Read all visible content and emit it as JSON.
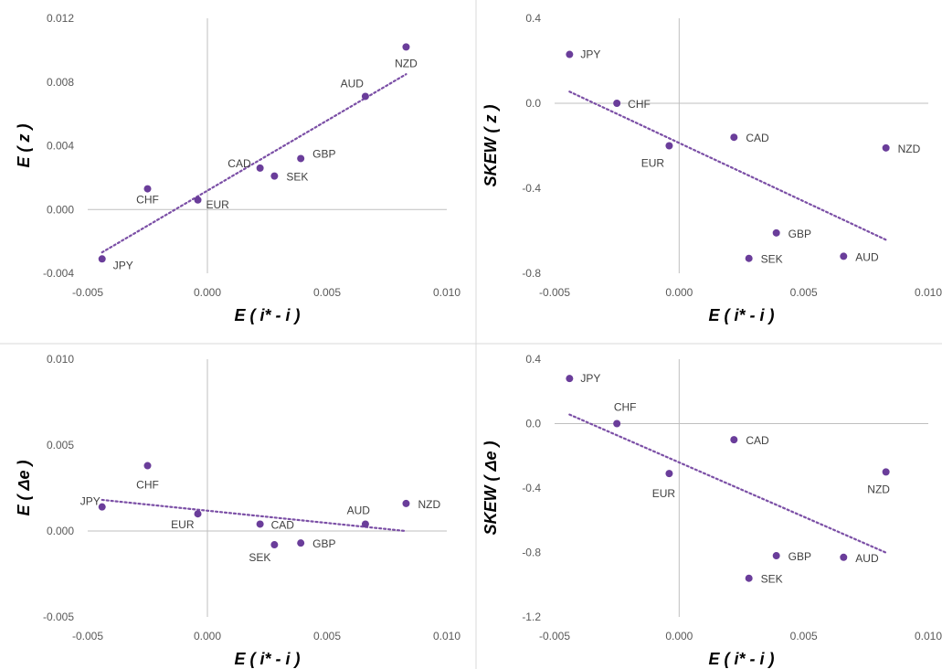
{
  "colors": {
    "marker": "#6a3d9a",
    "trend": "#7b4fa6",
    "zero_axis": "#bfbfbf",
    "text": "#595959"
  },
  "chart_data": [
    {
      "type": "scatter",
      "xlabel": "E ( i* - i )",
      "ylabel": "E ( z )",
      "xlim": [
        -0.005,
        0.01
      ],
      "ylim": [
        -0.004,
        0.012
      ],
      "xticks": [
        "-0.005",
        "0.000",
        "0.005",
        "0.010"
      ],
      "yticks": [
        "-0.004",
        "0.000",
        "0.004",
        "0.008",
        "0.012"
      ],
      "trendline": "linear, dotted",
      "points": [
        {
          "label": "JPY",
          "x": -0.0044,
          "y": -0.0031
        },
        {
          "label": "CHF",
          "x": -0.0025,
          "y": 0.0013
        },
        {
          "label": "EUR",
          "x": -0.0004,
          "y": 0.0006
        },
        {
          "label": "CAD",
          "x": 0.0022,
          "y": 0.0026
        },
        {
          "label": "SEK",
          "x": 0.0028,
          "y": 0.0021
        },
        {
          "label": "GBP",
          "x": 0.0039,
          "y": 0.0032
        },
        {
          "label": "AUD",
          "x": 0.0066,
          "y": 0.0071
        },
        {
          "label": "NZD",
          "x": 0.0083,
          "y": 0.0102
        }
      ]
    },
    {
      "type": "scatter",
      "xlabel": "E ( i* - i )",
      "ylabel": "SKEW ( z )",
      "xlim": [
        -0.005,
        0.01
      ],
      "ylim": [
        -0.8,
        0.4
      ],
      "xticks": [
        "-0.005",
        "0.000",
        "0.005",
        "0.010"
      ],
      "yticks": [
        "-0.8",
        "-0.4",
        "0.0",
        "0.4"
      ],
      "trendline": "linear, dotted",
      "points": [
        {
          "label": "JPY",
          "x": -0.0044,
          "y": 0.23
        },
        {
          "label": "CHF",
          "x": -0.0025,
          "y": 0.0
        },
        {
          "label": "EUR",
          "x": -0.0004,
          "y": -0.2
        },
        {
          "label": "CAD",
          "x": 0.0022,
          "y": -0.16
        },
        {
          "label": "NZD",
          "x": 0.0083,
          "y": -0.21
        },
        {
          "label": "GBP",
          "x": 0.0039,
          "y": -0.61
        },
        {
          "label": "SEK",
          "x": 0.0028,
          "y": -0.73
        },
        {
          "label": "AUD",
          "x": 0.0066,
          "y": -0.72
        }
      ]
    },
    {
      "type": "scatter",
      "xlabel": "E ( i* - i )",
      "ylabel": "E ( Δe )",
      "xlim": [
        -0.005,
        0.01
      ],
      "ylim": [
        -0.005,
        0.01
      ],
      "xticks": [
        "-0.005",
        "0.000",
        "0.005",
        "0.010"
      ],
      "yticks": [
        "-0.005",
        "0.000",
        "0.005",
        "0.010"
      ],
      "trendline": "linear, dotted",
      "points": [
        {
          "label": "JPY",
          "x": -0.0044,
          "y": 0.0014
        },
        {
          "label": "CHF",
          "x": -0.0025,
          "y": 0.0038
        },
        {
          "label": "EUR",
          "x": -0.0004,
          "y": 0.001
        },
        {
          "label": "CAD",
          "x": 0.0022,
          "y": 0.0004
        },
        {
          "label": "SEK",
          "x": 0.0028,
          "y": -0.0008
        },
        {
          "label": "GBP",
          "x": 0.0039,
          "y": -0.0007
        },
        {
          "label": "AUD",
          "x": 0.0066,
          "y": 0.0004
        },
        {
          "label": "NZD",
          "x": 0.0083,
          "y": 0.0016
        }
      ]
    },
    {
      "type": "scatter",
      "xlabel": "E ( i* - i )",
      "ylabel": "SKEW ( Δe )",
      "xlim": [
        -0.005,
        0.01
      ],
      "ylim": [
        -1.2,
        0.4
      ],
      "xticks": [
        "-0.005",
        "0.000",
        "0.005",
        "0.010"
      ],
      "yticks": [
        "-1.2",
        "-0.8",
        "-0.4",
        "0.0",
        "0.4"
      ],
      "trendline": "linear, dotted",
      "points": [
        {
          "label": "JPY",
          "x": -0.0044,
          "y": 0.28
        },
        {
          "label": "CHF",
          "x": -0.0025,
          "y": 0.0
        },
        {
          "label": "EUR",
          "x": -0.0004,
          "y": -0.31
        },
        {
          "label": "CAD",
          "x": 0.0022,
          "y": -0.1
        },
        {
          "label": "NZD",
          "x": 0.0083,
          "y": -0.3
        },
        {
          "label": "GBP",
          "x": 0.0039,
          "y": -0.82
        },
        {
          "label": "SEK",
          "x": 0.0028,
          "y": -0.96
        },
        {
          "label": "AUD",
          "x": 0.0066,
          "y": -0.83
        }
      ]
    }
  ]
}
